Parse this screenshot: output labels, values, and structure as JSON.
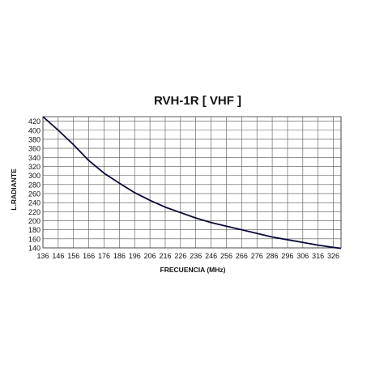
{
  "chart_data": {
    "type": "line",
    "title": "RVH-1R [ VHF ]",
    "xlabel": "FRECUENCIA (MHz)",
    "ylabel": "L.RADIANTE",
    "xlim": [
      136,
      331
    ],
    "ylim": [
      140,
      430
    ],
    "x_ticks": [
      136,
      146,
      156,
      166,
      176,
      186,
      196,
      206,
      216,
      226,
      236,
      246,
      256,
      266,
      276,
      286,
      296,
      306,
      316,
      326
    ],
    "y_ticks": [
      140,
      160,
      180,
      200,
      220,
      240,
      260,
      280,
      300,
      320,
      340,
      360,
      380,
      400,
      420
    ],
    "grid": true,
    "legend": "none",
    "series": [
      {
        "color": "#0a0a3a",
        "x": [
          136,
          146,
          156,
          166,
          176,
          186,
          196,
          206,
          216,
          226,
          236,
          246,
          256,
          266,
          276,
          286,
          296,
          306,
          316,
          326,
          331
        ],
        "y": [
          430,
          400,
          368,
          333,
          305,
          283,
          262,
          245,
          230,
          218,
          206,
          196,
          188,
          180,
          172,
          164,
          158,
          152,
          146,
          141,
          139
        ]
      }
    ]
  }
}
